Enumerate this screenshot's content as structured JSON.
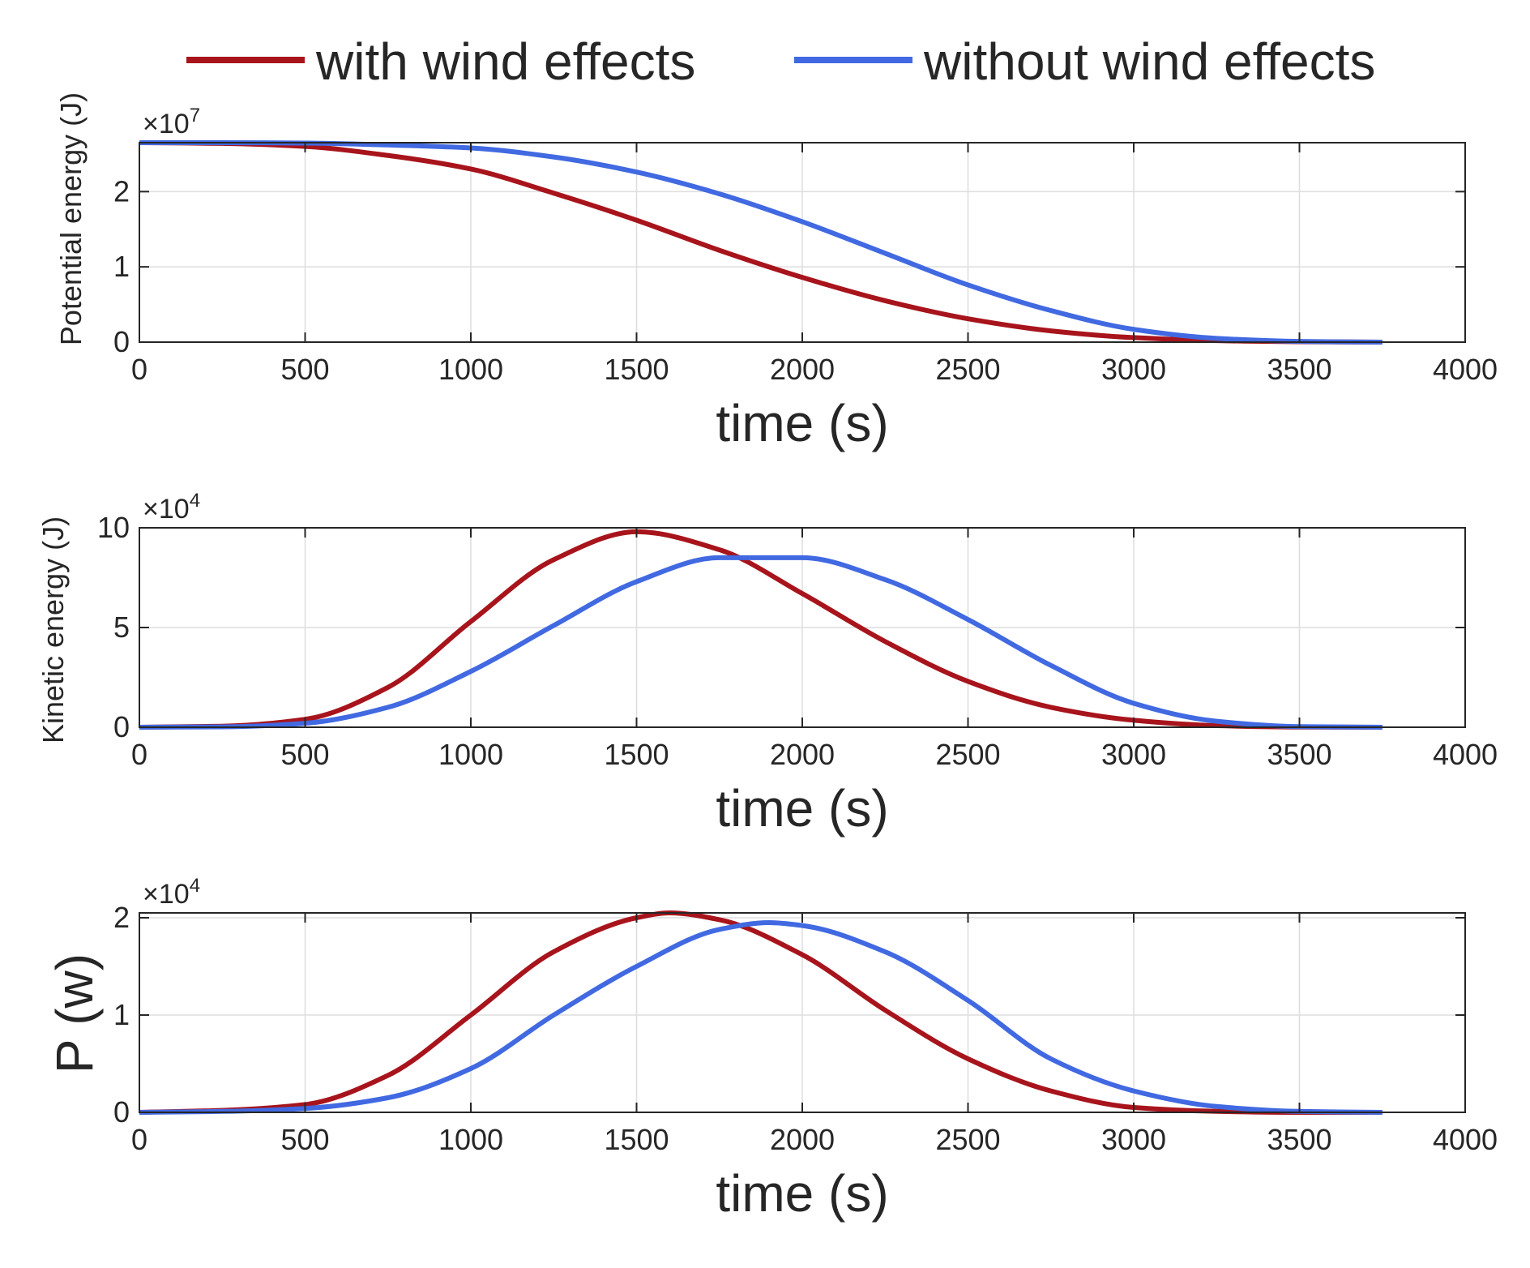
{
  "legend": [
    {
      "label": "with wind effects",
      "color": "#a8141c"
    },
    {
      "label": "without wind effects",
      "color": "#4169e1"
    }
  ],
  "chart_data": [
    {
      "type": "line",
      "ylabel": "Potential energy (J)",
      "xlabel": "time (s)",
      "xlim": [
        0,
        4000
      ],
      "xticks": [
        0,
        500,
        1000,
        1500,
        2000,
        2500,
        3000,
        3500,
        4000
      ],
      "ylim": [
        0,
        2.65
      ],
      "yticks": [
        0,
        1,
        2
      ],
      "exponent": {
        "base": "×10",
        "power": "7"
      },
      "grid": true,
      "series": [
        {
          "name": "with wind effects",
          "color": "#a8141c",
          "x": [
            0,
            250,
            500,
            750,
            1000,
            1250,
            1500,
            1750,
            2000,
            2250,
            2500,
            2750,
            3000,
            3250,
            3500,
            3750
          ],
          "y": [
            2.65,
            2.64,
            2.6,
            2.48,
            2.3,
            1.98,
            1.62,
            1.22,
            0.86,
            0.55,
            0.31,
            0.15,
            0.06,
            0.02,
            0.005,
            0.0
          ]
        },
        {
          "name": "without wind effects",
          "color": "#4169e1",
          "x": [
            0,
            250,
            500,
            750,
            1000,
            1250,
            1500,
            1750,
            2000,
            2250,
            2500,
            2750,
            3000,
            3250,
            3500,
            3750
          ],
          "y": [
            2.65,
            2.65,
            2.645,
            2.62,
            2.58,
            2.46,
            2.26,
            1.97,
            1.6,
            1.18,
            0.76,
            0.42,
            0.17,
            0.05,
            0.01,
            0.0
          ]
        }
      ]
    },
    {
      "type": "line",
      "ylabel": "Kinetic energy (J)",
      "xlabel": "time (s)",
      "xlim": [
        0,
        4000
      ],
      "xticks": [
        0,
        500,
        1000,
        1500,
        2000,
        2500,
        3000,
        3500,
        4000
      ],
      "ylim": [
        0,
        10
      ],
      "yticks": [
        0,
        5,
        10
      ],
      "exponent": {
        "base": "×10",
        "power": "4"
      },
      "grid": true,
      "series": [
        {
          "name": "with wind effects",
          "color": "#a8141c",
          "x": [
            0,
            250,
            500,
            750,
            1000,
            1250,
            1500,
            1750,
            2000,
            2250,
            2500,
            2750,
            3000,
            3250,
            3500,
            3750
          ],
          "y": [
            0.0,
            0.05,
            0.4,
            2.0,
            5.3,
            8.4,
            9.8,
            8.9,
            6.7,
            4.3,
            2.3,
            1.0,
            0.35,
            0.08,
            0.01,
            0.0
          ]
        },
        {
          "name": "without wind effects",
          "color": "#4169e1",
          "x": [
            0,
            250,
            500,
            750,
            1000,
            1250,
            1500,
            1750,
            2000,
            2250,
            2500,
            2750,
            3000,
            3250,
            3500,
            3750
          ],
          "y": [
            0.0,
            0.02,
            0.2,
            1.0,
            2.8,
            5.1,
            7.3,
            8.5,
            8.5,
            7.4,
            5.4,
            3.1,
            1.2,
            0.3,
            0.03,
            0.0
          ]
        }
      ]
    },
    {
      "type": "line",
      "ylabel": "P (w)",
      "xlabel": "time (s)",
      "xlim": [
        0,
        4000
      ],
      "xticks": [
        0,
        500,
        1000,
        1500,
        2000,
        2500,
        3000,
        3500,
        4000
      ],
      "ylim": [
        0,
        2.05
      ],
      "yticks": [
        0,
        1,
        2
      ],
      "exponent": {
        "base": "×10",
        "power": "4"
      },
      "grid": true,
      "series": [
        {
          "name": "with wind effects",
          "color": "#a8141c",
          "x": [
            0,
            250,
            500,
            750,
            1000,
            1250,
            1500,
            1600,
            1750,
            2000,
            2250,
            2500,
            2750,
            3000,
            3250,
            3500,
            3750
          ],
          "y": [
            0.0,
            0.02,
            0.08,
            0.38,
            1.0,
            1.65,
            2.0,
            2.05,
            1.98,
            1.62,
            1.05,
            0.55,
            0.22,
            0.05,
            0.01,
            0.0,
            0.0
          ]
        },
        {
          "name": "without wind effects",
          "color": "#4169e1",
          "x": [
            0,
            250,
            500,
            750,
            1000,
            1250,
            1500,
            1750,
            1900,
            2000,
            2250,
            2500,
            2750,
            3000,
            3250,
            3500,
            3750
          ],
          "y": [
            0.0,
            0.01,
            0.04,
            0.15,
            0.45,
            1.0,
            1.5,
            1.88,
            1.95,
            1.92,
            1.65,
            1.15,
            0.55,
            0.22,
            0.06,
            0.01,
            0.0
          ]
        }
      ]
    }
  ]
}
